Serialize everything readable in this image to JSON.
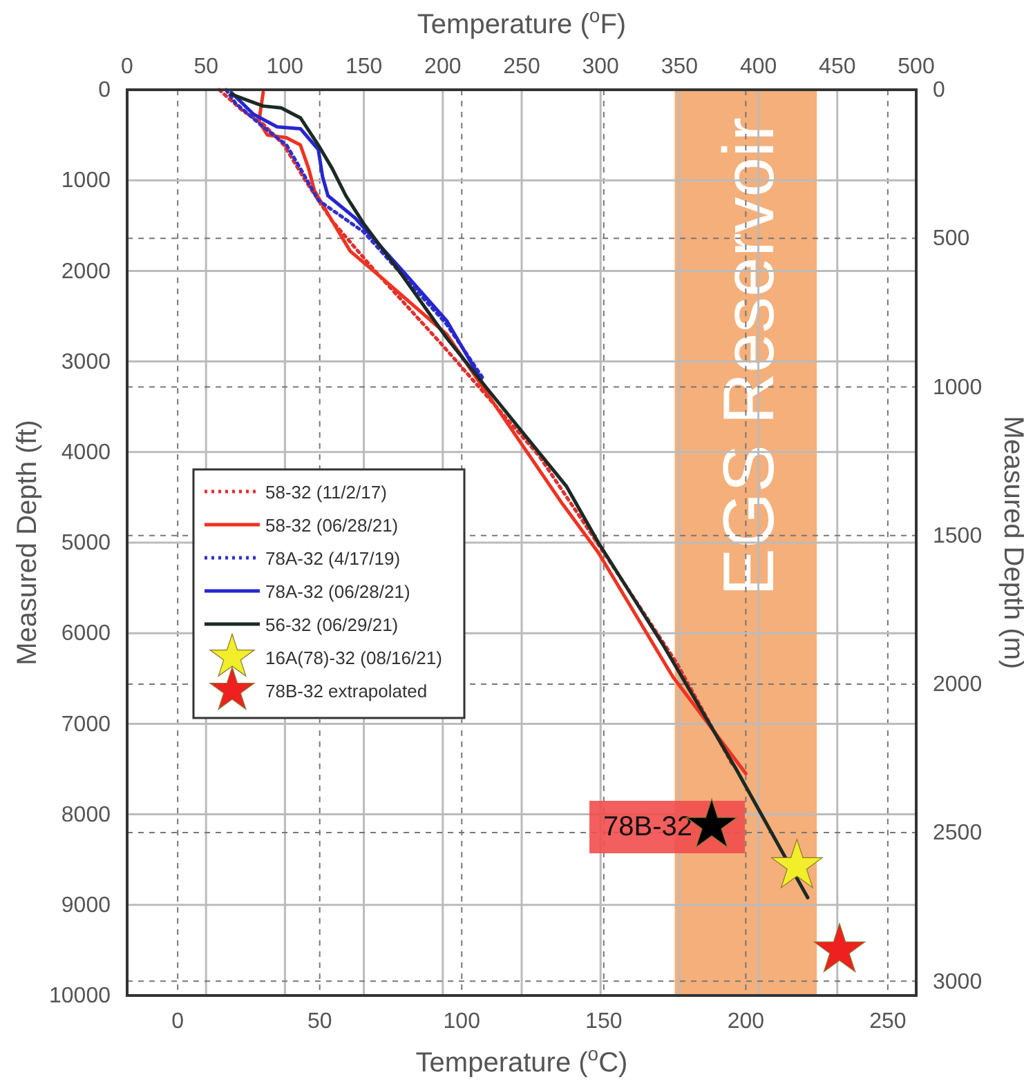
{
  "chart_data": {
    "type": "line",
    "xlabel": "Temperature ($^{o}$C)",
    "x2label": "Temperature ($^{o}$F)",
    "ylabel": "Measured Depth (ft)",
    "y2label": "Measured Depth (m)",
    "xlim": [
      -17.8,
      260
    ],
    "xticks": [
      0,
      50,
      100,
      150,
      200,
      250
    ],
    "x2lim": [
      0,
      500
    ],
    "x2ticks": [
      0,
      50,
      100,
      150,
      200,
      250,
      300,
      350,
      400,
      450,
      500
    ],
    "ylim": [
      10000,
      0
    ],
    "yticks": [
      0,
      1000,
      2000,
      3000,
      4000,
      5000,
      6000,
      7000,
      8000,
      9000,
      10000
    ],
    "y2lim": [
      3048,
      0
    ],
    "y2ticks": [
      0,
      500,
      1000,
      1500,
      2000,
      2500,
      3000
    ],
    "grid": true,
    "legend": "left",
    "bands": [
      {
        "axis": "x",
        "from": 175,
        "to": 225,
        "label": "EGS Reservoir",
        "color": "#f4a66c"
      }
    ],
    "annotations": [
      {
        "text": "78B-32",
        "x": 188,
        "y": 8125
      }
    ],
    "series": [
      {
        "name": "58-32 (11/2/17)",
        "color": "#e03030",
        "line_style": "dotted",
        "x": [
          14.6,
          22.8,
          30.1,
          37.4,
          44.7,
          54.4,
          68.9,
          93.2,
          127.2,
          151.5,
          175.7,
          195.1
        ],
        "values": [
          0,
          230,
          380,
          610,
          990,
          1450,
          1980,
          2820,
          4040,
          5180,
          6330,
          7440
        ]
      },
      {
        "name": "58-32 (06/28/21)",
        "color": "#ee3322",
        "line_style": "solid",
        "x": [
          30.1,
          28.6,
          31.6,
          38.3,
          43.2,
          46.1,
          48.1,
          52.9,
          60.7,
          72.3,
          94.7,
          135.4,
          148.1,
          174.3,
          200
        ],
        "values": [
          30,
          350,
          500,
          530,
          610,
          870,
          1110,
          1370,
          1780,
          2090,
          2700,
          4570,
          5110,
          6480,
          7550
        ]
      },
      {
        "name": "78A-32 (4/17/19)",
        "color": "#3030c8",
        "line_style": "dotted",
        "x": [
          17,
          20.4,
          30.1,
          38.3,
          43.2,
          49.5,
          65.5,
          94.7,
          107.8
        ],
        "values": [
          0,
          150,
          410,
          610,
          870,
          1220,
          1570,
          2590,
          3200
        ]
      },
      {
        "name": "78A-32 (06/28/21)",
        "color": "#2626d0",
        "line_style": "solid",
        "x": [
          18.9,
          26.7,
          35,
          43.2,
          49.5,
          51,
          52.9,
          62.6,
          78.6,
          94.7,
          106.8
        ],
        "values": [
          30,
          270,
          410,
          430,
          660,
          960,
          1170,
          1420,
          1980,
          2550,
          3200
        ]
      },
      {
        "name": "56-32 (06/29/21)",
        "color": "#1c2a24",
        "line_style": "solid",
        "x": [
          18.9,
          30.1,
          36.4,
          43.2,
          49.5,
          54.4,
          59.2,
          65.5,
          78.6,
          94.7,
          109.2,
          136.9,
          148.1,
          170.9,
          196.6,
          221.8
        ],
        "values": [
          50,
          180,
          200,
          310,
          610,
          870,
          1170,
          1480,
          2030,
          2740,
          3310,
          4380,
          5000,
          6130,
          7500,
          8920
        ]
      },
      {
        "name": "16A(78)-32 (08/16/21)",
        "type": "scatter",
        "marker": "star",
        "color": "#f2ee2a",
        "x": [
          218
        ],
        "values": [
          8570
        ]
      },
      {
        "name": "78B-32 extrapolated",
        "type": "scatter",
        "marker": "star",
        "color": "#ee2020",
        "x": [
          233
        ],
        "values": [
          9500
        ]
      },
      {
        "type": "scatter",
        "marker": "star",
        "color": "#000000",
        "x": [
          188
        ],
        "values": [
          8125
        ]
      }
    ]
  }
}
